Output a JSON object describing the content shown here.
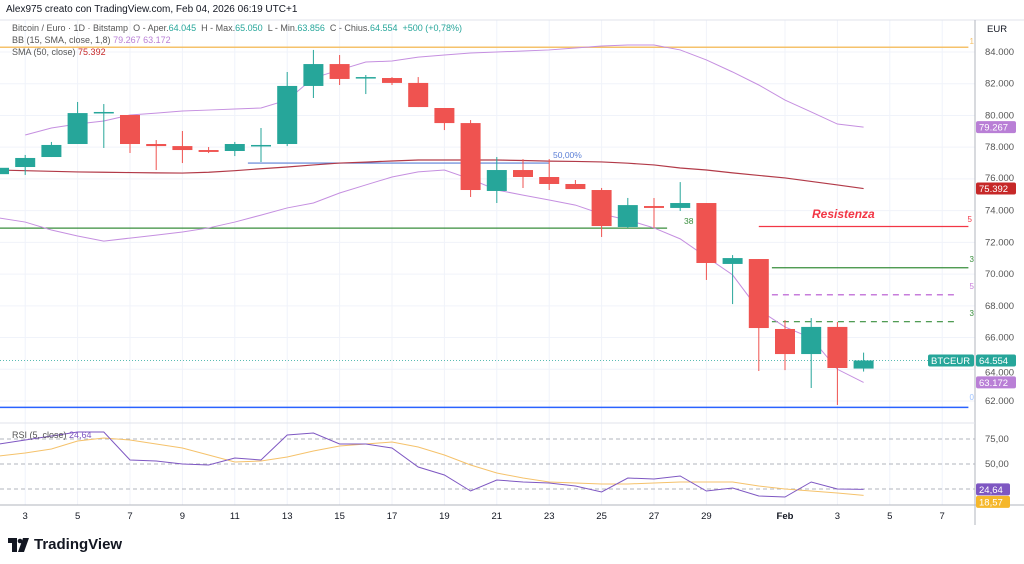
{
  "header": {
    "title": "Alex975 creato con TradingView.com, Feb 04, 2026 06:19 UTC+1"
  },
  "legend": {
    "symbol": "Bitcoin / Euro · 1D · Bitstamp",
    "o_label": "O - Aper.",
    "o": "64.045",
    "h_label": "H - Max.",
    "h": "65.050",
    "l_label": "L - Min.",
    "l": "63.856",
    "c_label": "C - Chius.",
    "c": "64.554",
    "change": "+500 (+0,78%)",
    "bb_label": "BB (15, SMA, close, 1,8)",
    "bb_upper": "79.267",
    "bb_lower": "63.172",
    "sma_label": "SMA (50, close)",
    "sma": "75.392",
    "rsi_label": "RSI (5, close)",
    "rsi": "24,64"
  },
  "colors": {
    "up": "#26a69a",
    "down": "#ef5350",
    "bb": "#c58fe0",
    "sma": "#b23a48",
    "rsi": "#7e57c2",
    "rsi_ma": "#f5c26b",
    "orange": "#f5c26b",
    "blue": "#2962ff",
    "green": "#388e3c",
    "red": "#f23645",
    "purple_dash": "#c77ddb"
  },
  "axis": {
    "currency": "EUR",
    "price_ticks": [
      "84.000",
      "82.000",
      "80.000",
      "78.000",
      "76.000",
      "74.000",
      "72.000",
      "70.000",
      "68.000",
      "66.000",
      "64.000",
      "62.000"
    ],
    "price_tick_values": [
      84000,
      82000,
      80000,
      78000,
      76000,
      74000,
      72000,
      70000,
      68000,
      66000,
      64000,
      62000
    ],
    "rsi_ticks": [
      "75,00",
      "50,00"
    ],
    "rsi_tick_values": [
      75,
      50
    ],
    "time_labels": [
      {
        "t": "3",
        "i": 1
      },
      {
        "t": "5",
        "i": 3
      },
      {
        "t": "7",
        "i": 5
      },
      {
        "t": "9",
        "i": 7
      },
      {
        "t": "11",
        "i": 9
      },
      {
        "t": "13",
        "i": 11
      },
      {
        "t": "15",
        "i": 13
      },
      {
        "t": "17",
        "i": 15
      },
      {
        "t": "19",
        "i": 17
      },
      {
        "t": "21",
        "i": 19
      },
      {
        "t": "23",
        "i": 21
      },
      {
        "t": "25",
        "i": 23
      },
      {
        "t": "27",
        "i": 25
      },
      {
        "t": "29",
        "i": 27
      },
      {
        "t": "Feb",
        "i": 30,
        "bold": true
      },
      {
        "t": "3",
        "i": 32
      },
      {
        "t": "5",
        "i": 34
      },
      {
        "t": "7",
        "i": 36
      }
    ]
  },
  "price_badges": [
    {
      "text": "79.267",
      "value": 79267,
      "color": "#b97fd6"
    },
    {
      "text": "75.392",
      "value": 75392,
      "color": "#c62828"
    },
    {
      "text": "63.172",
      "value": 63172,
      "color": "#b97fd6"
    }
  ],
  "last_price": {
    "symbol": "BTCEUR",
    "text": "64.554",
    "value": 64554
  },
  "rsi_badges": [
    {
      "text": "24,64",
      "value": 24.64,
      "color": "#7e57c2"
    },
    {
      "text": "18,57",
      "value": 18.57,
      "color": "#f5b72b"
    }
  ],
  "annotations": {
    "resistance": "Resistenza",
    "fib50": "50,00%",
    "fib38": "38",
    "lbl5a": "5",
    "lbl3a": "3",
    "lbl5b": "5",
    "lbl3b": "3",
    "lbl1": "1",
    "lbl0": "0"
  },
  "levels": [
    {
      "price": 84300,
      "from": -1,
      "to": 37,
      "color": "#f5c26b",
      "dash": false,
      "w": 1.5
    },
    {
      "price": 61600,
      "from": -1,
      "to": 37,
      "color": "#2962ff",
      "dash": false,
      "w": 1.5
    },
    {
      "price": 72900,
      "from": -1,
      "to": 25.5,
      "color": "#388e3c",
      "dash": false,
      "w": 1.2
    },
    {
      "price": 77000,
      "from": 9.5,
      "to": 21,
      "color": "#5b7fd6",
      "dash": false,
      "w": 1.2
    },
    {
      "price": 73000,
      "from": 29,
      "to": 37,
      "color": "#f23645",
      "dash": false,
      "w": 1.2
    },
    {
      "price": 70400,
      "from": 29.5,
      "to": 37,
      "color": "#388e3c",
      "dash": false,
      "w": 1.2
    },
    {
      "price": 68700,
      "from": 29.5,
      "to": 36.5,
      "color": "#c77ddb",
      "dash": true,
      "w": 1.5
    },
    {
      "price": 67000,
      "from": 29.5,
      "to": 36.5,
      "color": "#388e3c",
      "dash": true,
      "w": 1.2
    }
  ],
  "chart_data": {
    "type": "candlestick",
    "dates": [
      "Jan 2",
      "Jan 3",
      "Jan 4",
      "Jan 5",
      "Jan 6",
      "Jan 7",
      "Jan 8",
      "Jan 9",
      "Jan 10",
      "Jan 11",
      "Jan 12",
      "Jan 13",
      "Jan 14",
      "Jan 15",
      "Jan 16",
      "Jan 17",
      "Jan 18",
      "Jan 19",
      "Jan 20",
      "Jan 21",
      "Jan 22",
      "Jan 23",
      "Jan 24",
      "Jan 25",
      "Jan 26",
      "Jan 27",
      "Jan 28",
      "Jan 29",
      "Jan 30",
      "Jan 31",
      "Feb 1",
      "Feb 2",
      "Feb 3",
      "Feb 4"
    ],
    "ohlc": [
      [
        76300,
        76800,
        75600,
        76700
      ],
      [
        76750,
        77510,
        76250,
        77320
      ],
      [
        77380,
        78330,
        77380,
        78140
      ],
      [
        78200,
        80850,
        78200,
        80150
      ],
      [
        80150,
        80720,
        77950,
        80220
      ],
      [
        80030,
        80030,
        77630,
        78200
      ],
      [
        78200,
        78450,
        76560,
        78070
      ],
      [
        78070,
        79020,
        77000,
        77820
      ],
      [
        77820,
        78010,
        77630,
        77700
      ],
      [
        77760,
        78330,
        77440,
        78200
      ],
      [
        78070,
        79210,
        77070,
        78140
      ],
      [
        78200,
        82740,
        78070,
        81860
      ],
      [
        81860,
        84130,
        81100,
        83240
      ],
      [
        83240,
        83810,
        81920,
        82300
      ],
      [
        82360,
        82550,
        81350,
        82420
      ],
      [
        82360,
        82420,
        81920,
        82050
      ],
      [
        82050,
        82420,
        80530,
        80530
      ],
      [
        80470,
        80470,
        79080,
        79520
      ],
      [
        79520,
        79710,
        74860,
        75300
      ],
      [
        75240,
        77380,
        74480,
        76560
      ],
      [
        76560,
        77250,
        75430,
        76120
      ],
      [
        76120,
        77250,
        75300,
        75680
      ],
      [
        75680,
        75930,
        75360,
        75360
      ],
      [
        75300,
        75430,
        72340,
        73030
      ],
      [
        72970,
        74800,
        72910,
        74350
      ],
      [
        74290,
        74800,
        72910,
        74170
      ],
      [
        74170,
        75800,
        73980,
        74480
      ],
      [
        74480,
        74480,
        69630,
        70700
      ],
      [
        70640,
        71200,
        68110,
        71010
      ],
      [
        70950,
        70950,
        63890,
        66600
      ],
      [
        66540,
        67110,
        63950,
        64960
      ],
      [
        64960,
        67230,
        62820,
        66670
      ],
      [
        66670,
        66980,
        61750,
        64080
      ],
      [
        64045,
        65050,
        63856,
        64554
      ]
    ],
    "bb_upper": [
      null,
      78770,
      79210,
      79460,
      79650,
      80030,
      80150,
      80280,
      80340,
      80410,
      80470,
      80970,
      82360,
      82870,
      83370,
      83430,
      83680,
      83810,
      83940,
      84000,
      84060,
      84130,
      84250,
      84380,
      84440,
      84440,
      84130,
      83500,
      82740,
      81920,
      80970,
      80220,
      79460,
      79267
    ],
    "bb_lower": [
      73540,
      73280,
      72780,
      72400,
      72080,
      72270,
      72460,
      72650,
      72910,
      73280,
      73720,
      74170,
      74480,
      75110,
      75620,
      76120,
      76440,
      76560,
      75990,
      75300,
      74980,
      74670,
      74350,
      73790,
      73410,
      72910,
      72220,
      71080,
      69950,
      67740,
      66670,
      65970,
      64000,
      63172
    ],
    "sma50": [
      76560,
      76520,
      76480,
      76440,
      76420,
      76400,
      76380,
      76370,
      76420,
      76520,
      76640,
      76750,
      76880,
      77000,
      77060,
      77130,
      77190,
      77190,
      77190,
      77190,
      77160,
      77120,
      77100,
      77070,
      76990,
      76880,
      76690,
      76560,
      76380,
      76220,
      76060,
      75840,
      75620,
      75392
    ],
    "rsi": [
      70,
      74,
      78,
      82,
      82,
      54,
      53,
      50,
      49,
      56,
      54,
      79,
      81,
      70,
      70,
      66,
      47,
      39,
      23,
      34,
      32,
      31,
      28,
      22,
      36,
      35,
      38,
      23,
      26,
      18,
      17,
      32,
      25,
      24.64
    ],
    "rsi_ma": [
      58,
      61,
      65,
      73,
      76,
      74,
      70,
      66,
      59,
      52,
      53,
      57,
      63,
      68,
      70,
      72,
      67,
      59,
      49,
      41,
      36,
      32,
      31,
      30,
      30,
      31,
      32,
      32,
      32,
      28,
      25,
      23,
      21,
      18.57
    ],
    "ylim": [
      61000,
      85000
    ],
    "rsi_ylim": [
      0,
      100
    ]
  }
}
